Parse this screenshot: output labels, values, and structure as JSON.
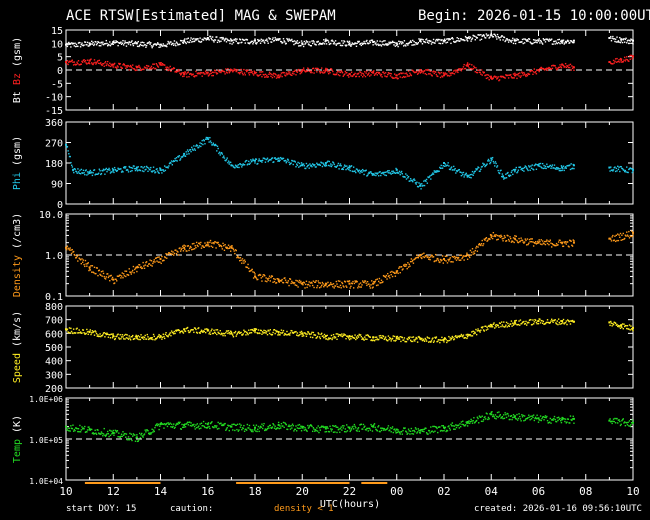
{
  "header": {
    "title": "ACE RTSW[Estimated] MAG & SWEPAM",
    "begin": "Begin: 2026-01-15 10:00:00UTC"
  },
  "footer": {
    "start_doy": "start DOY:  15",
    "caution": "caution:",
    "density_note": "density < 1",
    "created": "created: 2026-01-16 09:56:10UTC"
  },
  "colors": {
    "background": "#000000",
    "axes": "#ffffff",
    "bt": "#ffffff",
    "bz": "#ff2020",
    "phi": "#22c8e8",
    "density": "#ff9a1a",
    "speed": "#ffee22",
    "temp": "#22dd22"
  },
  "chart_data": {
    "type": "scatter",
    "xlabel": "UTC(hours)",
    "xlim": [
      0,
      24
    ],
    "x_tick_labels": [
      "10",
      "12",
      "14",
      "16",
      "18",
      "20",
      "22",
      "00",
      "02",
      "04",
      "06",
      "08",
      "10"
    ],
    "panels": [
      {
        "id": "mag",
        "ylabel_parts": [
          {
            "text": "Bt",
            "color": "#ffffff"
          },
          {
            "text": "Bz",
            "color": "#ff2020"
          },
          {
            "text": "(gsm)",
            "color": "#ffffff"
          }
        ],
        "ylim": [
          -15,
          15
        ],
        "scale": "linear",
        "ticks": [
          -15,
          -10,
          -5,
          0,
          5,
          10,
          15
        ],
        "tick_labels": [
          "-15",
          "-10",
          "-5",
          "0",
          "5",
          "10",
          "15"
        ],
        "reference_line": 0,
        "series": [
          {
            "name": "Bt",
            "color": "#ffffff",
            "points": [
              [
                0,
                9.5
              ],
              [
                1,
                10
              ],
              [
                2,
                10.5
              ],
              [
                3,
                10
              ],
              [
                4,
                9.5
              ],
              [
                5,
                11
              ],
              [
                6,
                12
              ],
              [
                7,
                11
              ],
              [
                8,
                11
              ],
              [
                9,
                11.5
              ],
              [
                10,
                10
              ],
              [
                11,
                11
              ],
              [
                12,
                10
              ],
              [
                13,
                10.5
              ],
              [
                14,
                10
              ],
              [
                15,
                11
              ],
              [
                16,
                11
              ],
              [
                17,
                12
              ],
              [
                18,
                13
              ],
              [
                19,
                11
              ],
              [
                20,
                11
              ],
              [
                21,
                11
              ],
              [
                21.5,
                11
              ],
              [
                23,
                12
              ],
              [
                23.5,
                11.5
              ],
              [
                24,
                11
              ]
            ]
          },
          {
            "name": "Bz",
            "color": "#ff2020",
            "points": [
              [
                0,
                3
              ],
              [
                1,
                3.5
              ],
              [
                2,
                2
              ],
              [
                3,
                1
              ],
              [
                4,
                2
              ],
              [
                5,
                -1.5
              ],
              [
                6,
                -1
              ],
              [
                7,
                0
              ],
              [
                8,
                -1
              ],
              [
                9,
                -2
              ],
              [
                10,
                0
              ],
              [
                11,
                0
              ],
              [
                12,
                -1.5
              ],
              [
                13,
                -1
              ],
              [
                14,
                -2
              ],
              [
                15,
                0
              ],
              [
                16,
                -2
              ],
              [
                17,
                2
              ],
              [
                18,
                -3
              ],
              [
                19,
                -2
              ],
              [
                20,
                0
              ],
              [
                21,
                2
              ],
              [
                21.5,
                1
              ],
              [
                23,
                3
              ],
              [
                23.5,
                4
              ],
              [
                24,
                5
              ]
            ]
          }
        ]
      },
      {
        "id": "phi",
        "ylabel_parts": [
          {
            "text": "Phi",
            "color": "#22c8e8"
          },
          {
            "text": "(gsm)",
            "color": "#ffffff"
          }
        ],
        "ylim": [
          0,
          360
        ],
        "scale": "linear",
        "ticks": [
          0,
          90,
          180,
          270,
          360
        ],
        "tick_labels": [
          "0",
          "90",
          "180",
          "270",
          "360"
        ],
        "series": [
          {
            "name": "Phi",
            "color": "#22c8e8",
            "points": [
              [
                0,
                260
              ],
              [
                0.3,
                150
              ],
              [
                1,
                140
              ],
              [
                2,
                150
              ],
              [
                3,
                160
              ],
              [
                4,
                150
              ],
              [
                5,
                220
              ],
              [
                6,
                290
              ],
              [
                7,
                170
              ],
              [
                8,
                190
              ],
              [
                9,
                200
              ],
              [
                10,
                170
              ],
              [
                11,
                180
              ],
              [
                12,
                160
              ],
              [
                13,
                130
              ],
              [
                14,
                150
              ],
              [
                15,
                80
              ],
              [
                16,
                180
              ],
              [
                17,
                120
              ],
              [
                18,
                200
              ],
              [
                18.5,
                120
              ],
              [
                19,
                150
              ],
              [
                20,
                170
              ],
              [
                21,
                160
              ],
              [
                21.5,
                170
              ],
              [
                23,
                160
              ],
              [
                24,
                150
              ]
            ]
          }
        ]
      },
      {
        "id": "density",
        "ylabel_parts": [
          {
            "text": "Density",
            "color": "#ff9a1a"
          },
          {
            "text": "(/cm3)",
            "color": "#ffffff"
          }
        ],
        "ylim": [
          0.1,
          10
        ],
        "scale": "log",
        "ticks": [
          0.1,
          1,
          10
        ],
        "tick_labels": [
          "0.1",
          "1.0",
          "10.0"
        ],
        "reference_line": 1,
        "series": [
          {
            "name": "Density",
            "color": "#ff9a1a",
            "points": [
              [
                0,
                1.5
              ],
              [
                1,
                0.5
              ],
              [
                2,
                0.25
              ],
              [
                3,
                0.5
              ],
              [
                4,
                0.8
              ],
              [
                5,
                1.5
              ],
              [
                6,
                2
              ],
              [
                7,
                1.5
              ],
              [
                8,
                0.3
              ],
              [
                9,
                0.25
              ],
              [
                10,
                0.2
              ],
              [
                11,
                0.2
              ],
              [
                12,
                0.2
              ],
              [
                13,
                0.2
              ],
              [
                14,
                0.4
              ],
              [
                15,
                1
              ],
              [
                16,
                0.8
              ],
              [
                17,
                1
              ],
              [
                18,
                3
              ],
              [
                19,
                2.5
              ],
              [
                20,
                2
              ],
              [
                21,
                2
              ],
              [
                21.5,
                2
              ],
              [
                23,
                2.5
              ],
              [
                24,
                3.5
              ]
            ]
          }
        ]
      },
      {
        "id": "speed",
        "ylabel_parts": [
          {
            "text": "Speed",
            "color": "#ffee22"
          },
          {
            "text": "(km/s)",
            "color": "#ffffff"
          }
        ],
        "ylim": [
          200,
          800
        ],
        "scale": "linear",
        "ticks": [
          200,
          300,
          400,
          500,
          600,
          700,
          800
        ],
        "tick_labels": [
          "200",
          "300",
          "400",
          "500",
          "600",
          "700",
          "800"
        ],
        "series": [
          {
            "name": "Speed",
            "color": "#ffee22",
            "points": [
              [
                0,
                630
              ],
              [
                1,
                610
              ],
              [
                2,
                580
              ],
              [
                3,
                575
              ],
              [
                4,
                580
              ],
              [
                5,
                630
              ],
              [
                6,
                620
              ],
              [
                7,
                600
              ],
              [
                8,
                620
              ],
              [
                9,
                610
              ],
              [
                10,
                600
              ],
              [
                11,
                580
              ],
              [
                12,
                580
              ],
              [
                13,
                570
              ],
              [
                14,
                565
              ],
              [
                15,
                560
              ],
              [
                16,
                555
              ],
              [
                17,
                590
              ],
              [
                18,
                660
              ],
              [
                19,
                680
              ],
              [
                20,
                690
              ],
              [
                21,
                690
              ],
              [
                21.5,
                685
              ],
              [
                23,
                680
              ],
              [
                23.5,
                660
              ],
              [
                24,
                640
              ]
            ]
          }
        ]
      },
      {
        "id": "temp",
        "ylabel_parts": [
          {
            "text": "Temp",
            "color": "#22dd22"
          },
          {
            "text": "(K)",
            "color": "#ffffff"
          }
        ],
        "ylim": [
          10000,
          1000000
        ],
        "scale": "log",
        "ticks": [
          10000,
          100000,
          1000000
        ],
        "tick_labels": [
          "1.0E+04",
          "1.0E+05",
          "1.0E+06"
        ],
        "reference_line": 100000,
        "series": [
          {
            "name": "Temp",
            "color": "#22dd22",
            "points": [
              [
                0,
                200000
              ],
              [
                1,
                170000
              ],
              [
                2,
                140000
              ],
              [
                3,
                110000
              ],
              [
                4,
                230000
              ],
              [
                5,
                220000
              ],
              [
                6,
                230000
              ],
              [
                7,
                200000
              ],
              [
                8,
                190000
              ],
              [
                9,
                220000
              ],
              [
                10,
                190000
              ],
              [
                11,
                180000
              ],
              [
                12,
                190000
              ],
              [
                13,
                200000
              ],
              [
                14,
                170000
              ],
              [
                15,
                160000
              ],
              [
                16,
                190000
              ],
              [
                17,
                260000
              ],
              [
                18,
                400000
              ],
              [
                19,
                360000
              ],
              [
                20,
                320000
              ],
              [
                21,
                300000
              ],
              [
                21.5,
                310000
              ],
              [
                23,
                280000
              ],
              [
                24,
                250000
              ]
            ]
          }
        ]
      }
    ],
    "density_flags_hours": [
      [
        0.8,
        4.0
      ],
      [
        7.2,
        12.0
      ],
      [
        12.5,
        13.6
      ]
    ]
  }
}
